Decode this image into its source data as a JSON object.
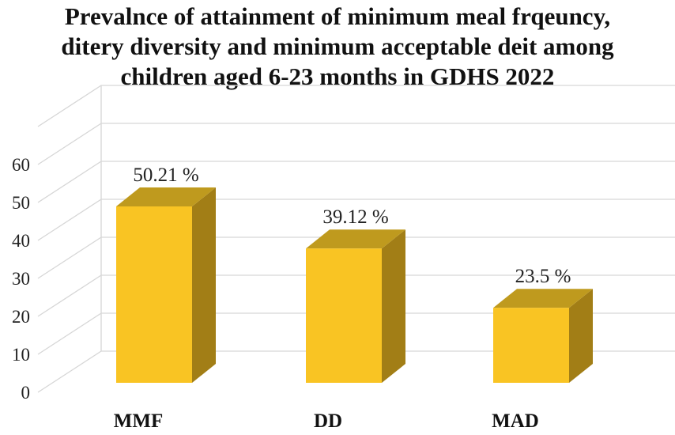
{
  "chart_data": {
    "type": "bar",
    "title_lines": [
      "Prevalnce of attainment of minimum meal frqeuncy,",
      "ditery diversity and minimum acceptable deit among",
      "children aged 6-23 months in GDHS 2022"
    ],
    "categories": [
      "MMF",
      "DD",
      "MAD"
    ],
    "values": [
      50.21,
      39.12,
      23.5
    ],
    "data_labels": [
      "50.21 %",
      "39.12 %",
      "23.5 %"
    ],
    "y_ticks": [
      "0",
      "10",
      "20",
      "30",
      "40",
      "50",
      "60"
    ],
    "ylim": [
      0,
      60
    ],
    "xlabel": "",
    "ylabel": "",
    "grid": true,
    "legend": "none"
  },
  "colors": {
    "bar_front": "#F9C423",
    "bar_top": "#BF9A1E",
    "bar_side": "#A27E16",
    "grid": "#D6D6D6",
    "axis_text": "#222222"
  }
}
